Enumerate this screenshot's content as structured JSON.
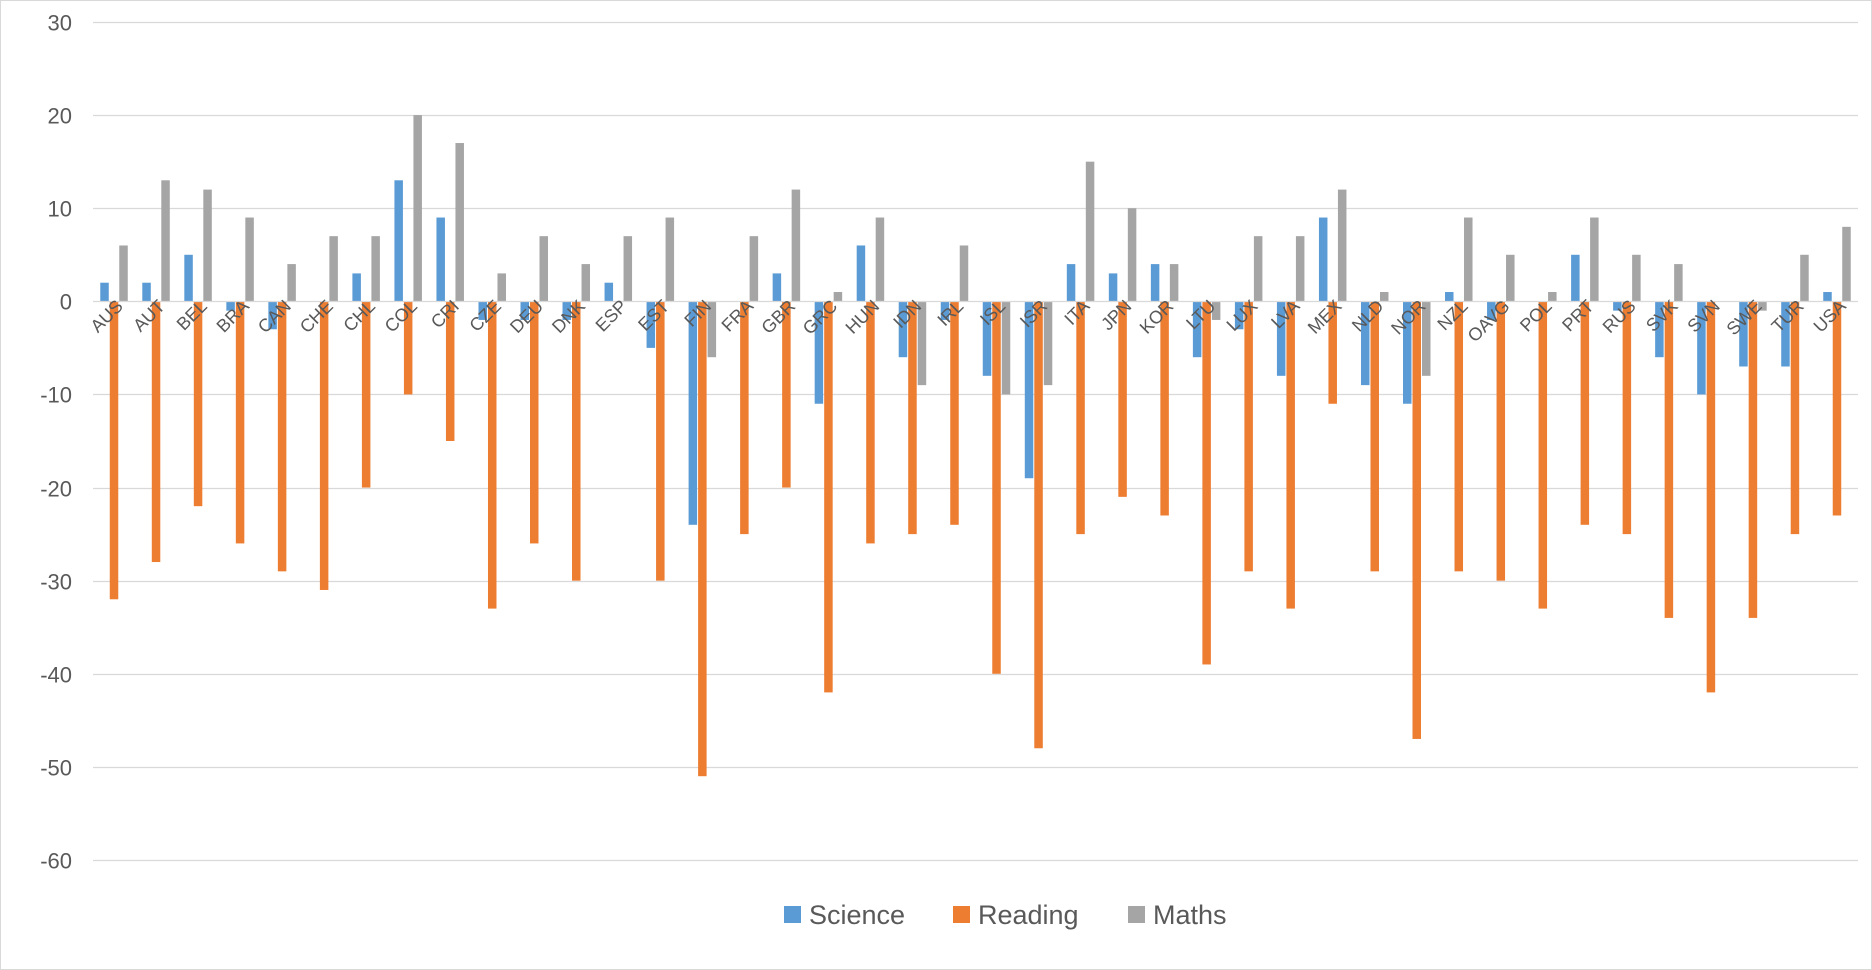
{
  "chart_data": {
    "type": "bar",
    "title": "",
    "xlabel": "",
    "ylabel": "",
    "ylim": [
      -60,
      30
    ],
    "yticks": [
      30,
      20,
      10,
      0,
      -10,
      -20,
      -30,
      -40,
      -50,
      -60
    ],
    "grid": true,
    "legend_position": "bottom",
    "categories": [
      "AUS",
      "AUT",
      "BEL",
      "BRA",
      "CAN",
      "CHE",
      "CHL",
      "COL",
      "CRI",
      "CZE",
      "DEU",
      "DNK",
      "ESP",
      "EST",
      "FIN",
      "FRA",
      "GBR",
      "GRC",
      "HUN",
      "IDN",
      "IRL",
      "ISL",
      "ISR",
      "ITA",
      "JPN",
      "KOR",
      "LTU",
      "LUX",
      "LVA",
      "MEX",
      "NLD",
      "NOR",
      "NZL",
      "OAVG",
      "POL",
      "PRT",
      "RUS",
      "SVK",
      "SVN",
      "SWE",
      "TUR",
      "USA"
    ],
    "series": [
      {
        "name": "Science",
        "color": "#5B9BD5",
        "values": [
          2,
          2,
          5,
          -1,
          -3,
          0,
          3,
          13,
          9,
          -2,
          -2,
          -2,
          2,
          -5,
          -24,
          0,
          3,
          -11,
          6,
          -6,
          -2,
          -8,
          -19,
          4,
          3,
          4,
          -6,
          -3,
          -8,
          9,
          -9,
          -11,
          1,
          -2,
          0,
          5,
          -1,
          -6,
          -10,
          -7,
          -7,
          1
        ]
      },
      {
        "name": "Reading",
        "color": "#ED7D31",
        "values": [
          -32,
          -28,
          -22,
          -26,
          -29,
          -31,
          -20,
          -10,
          -15,
          -33,
          -26,
          -30,
          0,
          -30,
          -51,
          -25,
          -20,
          -42,
          -26,
          -25,
          -24,
          -40,
          -48,
          -25,
          -21,
          -23,
          -39,
          -29,
          -33,
          -11,
          -29,
          -47,
          -29,
          -30,
          -33,
          -24,
          -25,
          -34,
          -42,
          -34,
          -25,
          -23
        ]
      },
      {
        "name": "Maths",
        "color": "#A5A5A5",
        "values": [
          6,
          13,
          12,
          9,
          4,
          7,
          7,
          20,
          17,
          3,
          7,
          4,
          7,
          9,
          -6,
          7,
          12,
          1,
          9,
          -9,
          6,
          -10,
          -9,
          15,
          10,
          4,
          -2,
          7,
          7,
          12,
          1,
          -8,
          9,
          5,
          1,
          9,
          5,
          4,
          0,
          -1,
          5,
          8
        ]
      }
    ]
  }
}
